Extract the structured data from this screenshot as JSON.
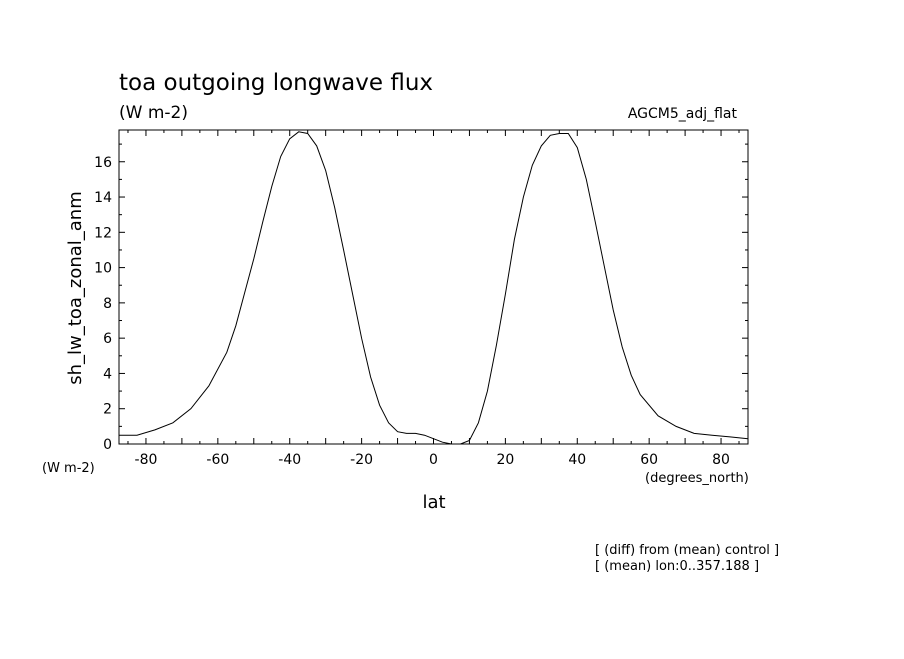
{
  "chart_data": {
    "type": "line",
    "title": "toa outgoing longwave flux",
    "subtitle_units": "(W m-2)",
    "dataset_label": "AGCM5_adj_flat",
    "ylabel": "sh_lw_toa_zonal_anm",
    "y_units_label": "(W m-2)",
    "xlabel": "lat",
    "x_units_label": "(degrees_north)",
    "notes": [
      "[ (diff) from (mean) control ]",
      "[ (mean) lon:0..357.188 ]"
    ],
    "xlim": [
      -87.5,
      87.5
    ],
    "ylim": [
      0,
      17.8
    ],
    "x_ticks": [
      -80,
      -60,
      -40,
      -20,
      0,
      20,
      40,
      60,
      80
    ],
    "x_tick_labels": [
      "-80",
      "-60",
      "-40",
      "-20",
      "0",
      "20",
      "40",
      "60",
      "80"
    ],
    "y_ticks": [
      0,
      2,
      4,
      6,
      8,
      10,
      12,
      14,
      16
    ],
    "y_tick_labels": [
      "0",
      "2",
      "4",
      "6",
      "8",
      "10",
      "12",
      "14",
      "16"
    ],
    "grid": false,
    "series": [
      {
        "x": [
          -87.5,
          -82.5,
          -77.5,
          -72.5,
          -67.5,
          -62.5,
          -57.5,
          -55,
          -52.5,
          -50,
          -47.5,
          -45,
          -42.5,
          -40,
          -37.5,
          -35,
          -32.5,
          -30,
          -27.5,
          -25,
          -22.5,
          -20,
          -17.5,
          -15,
          -12.5,
          -10,
          -7.5,
          -5,
          -2.5,
          0,
          2.5,
          5,
          7.5,
          10,
          12.5,
          15,
          17.5,
          20,
          22.5,
          25,
          27.5,
          30,
          32.5,
          35,
          37.5,
          40,
          42.5,
          45,
          47.5,
          50,
          52.5,
          55,
          57.5,
          62.5,
          67.5,
          72.5,
          77.5,
          82.5,
          87.5
        ],
        "values": [
          0.5,
          0.5,
          0.8,
          1.2,
          2.0,
          3.3,
          5.2,
          6.7,
          8.6,
          10.5,
          12.6,
          14.6,
          16.3,
          17.3,
          17.7,
          17.6,
          16.9,
          15.5,
          13.4,
          11.0,
          8.5,
          6.0,
          3.8,
          2.2,
          1.2,
          0.7,
          0.6,
          0.6,
          0.5,
          0.3,
          0.1,
          0.0,
          0.0,
          0.2,
          1.2,
          3.0,
          5.6,
          8.5,
          11.6,
          14.0,
          15.8,
          16.9,
          17.5,
          17.6,
          17.6,
          16.8,
          15.0,
          12.6,
          10.1,
          7.6,
          5.5,
          3.9,
          2.8,
          1.6,
          1.0,
          0.6,
          0.5,
          0.4,
          0.3
        ]
      }
    ]
  }
}
